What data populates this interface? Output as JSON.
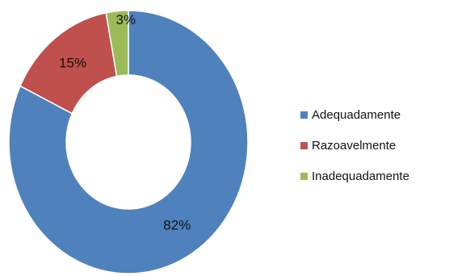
{
  "chart_data": {
    "type": "pie",
    "variant": "donut",
    "title": "",
    "categories": [
      "Adequadamente",
      "Razoavelmente",
      "Inadequadamente"
    ],
    "values": [
      82,
      15,
      3
    ],
    "data_labels": [
      "82%",
      "15%",
      "3%"
    ],
    "colors": [
      "#4f81bd",
      "#c0504d",
      "#9bbb59"
    ],
    "legend": {
      "position": "right",
      "entries": [
        {
          "label": "Adequadamente",
          "color": "#4f81bd"
        },
        {
          "label": "Razoavelmente",
          "color": "#c0504d"
        },
        {
          "label": "Inadequadamente",
          "color": "#9bbb59"
        }
      ]
    }
  }
}
